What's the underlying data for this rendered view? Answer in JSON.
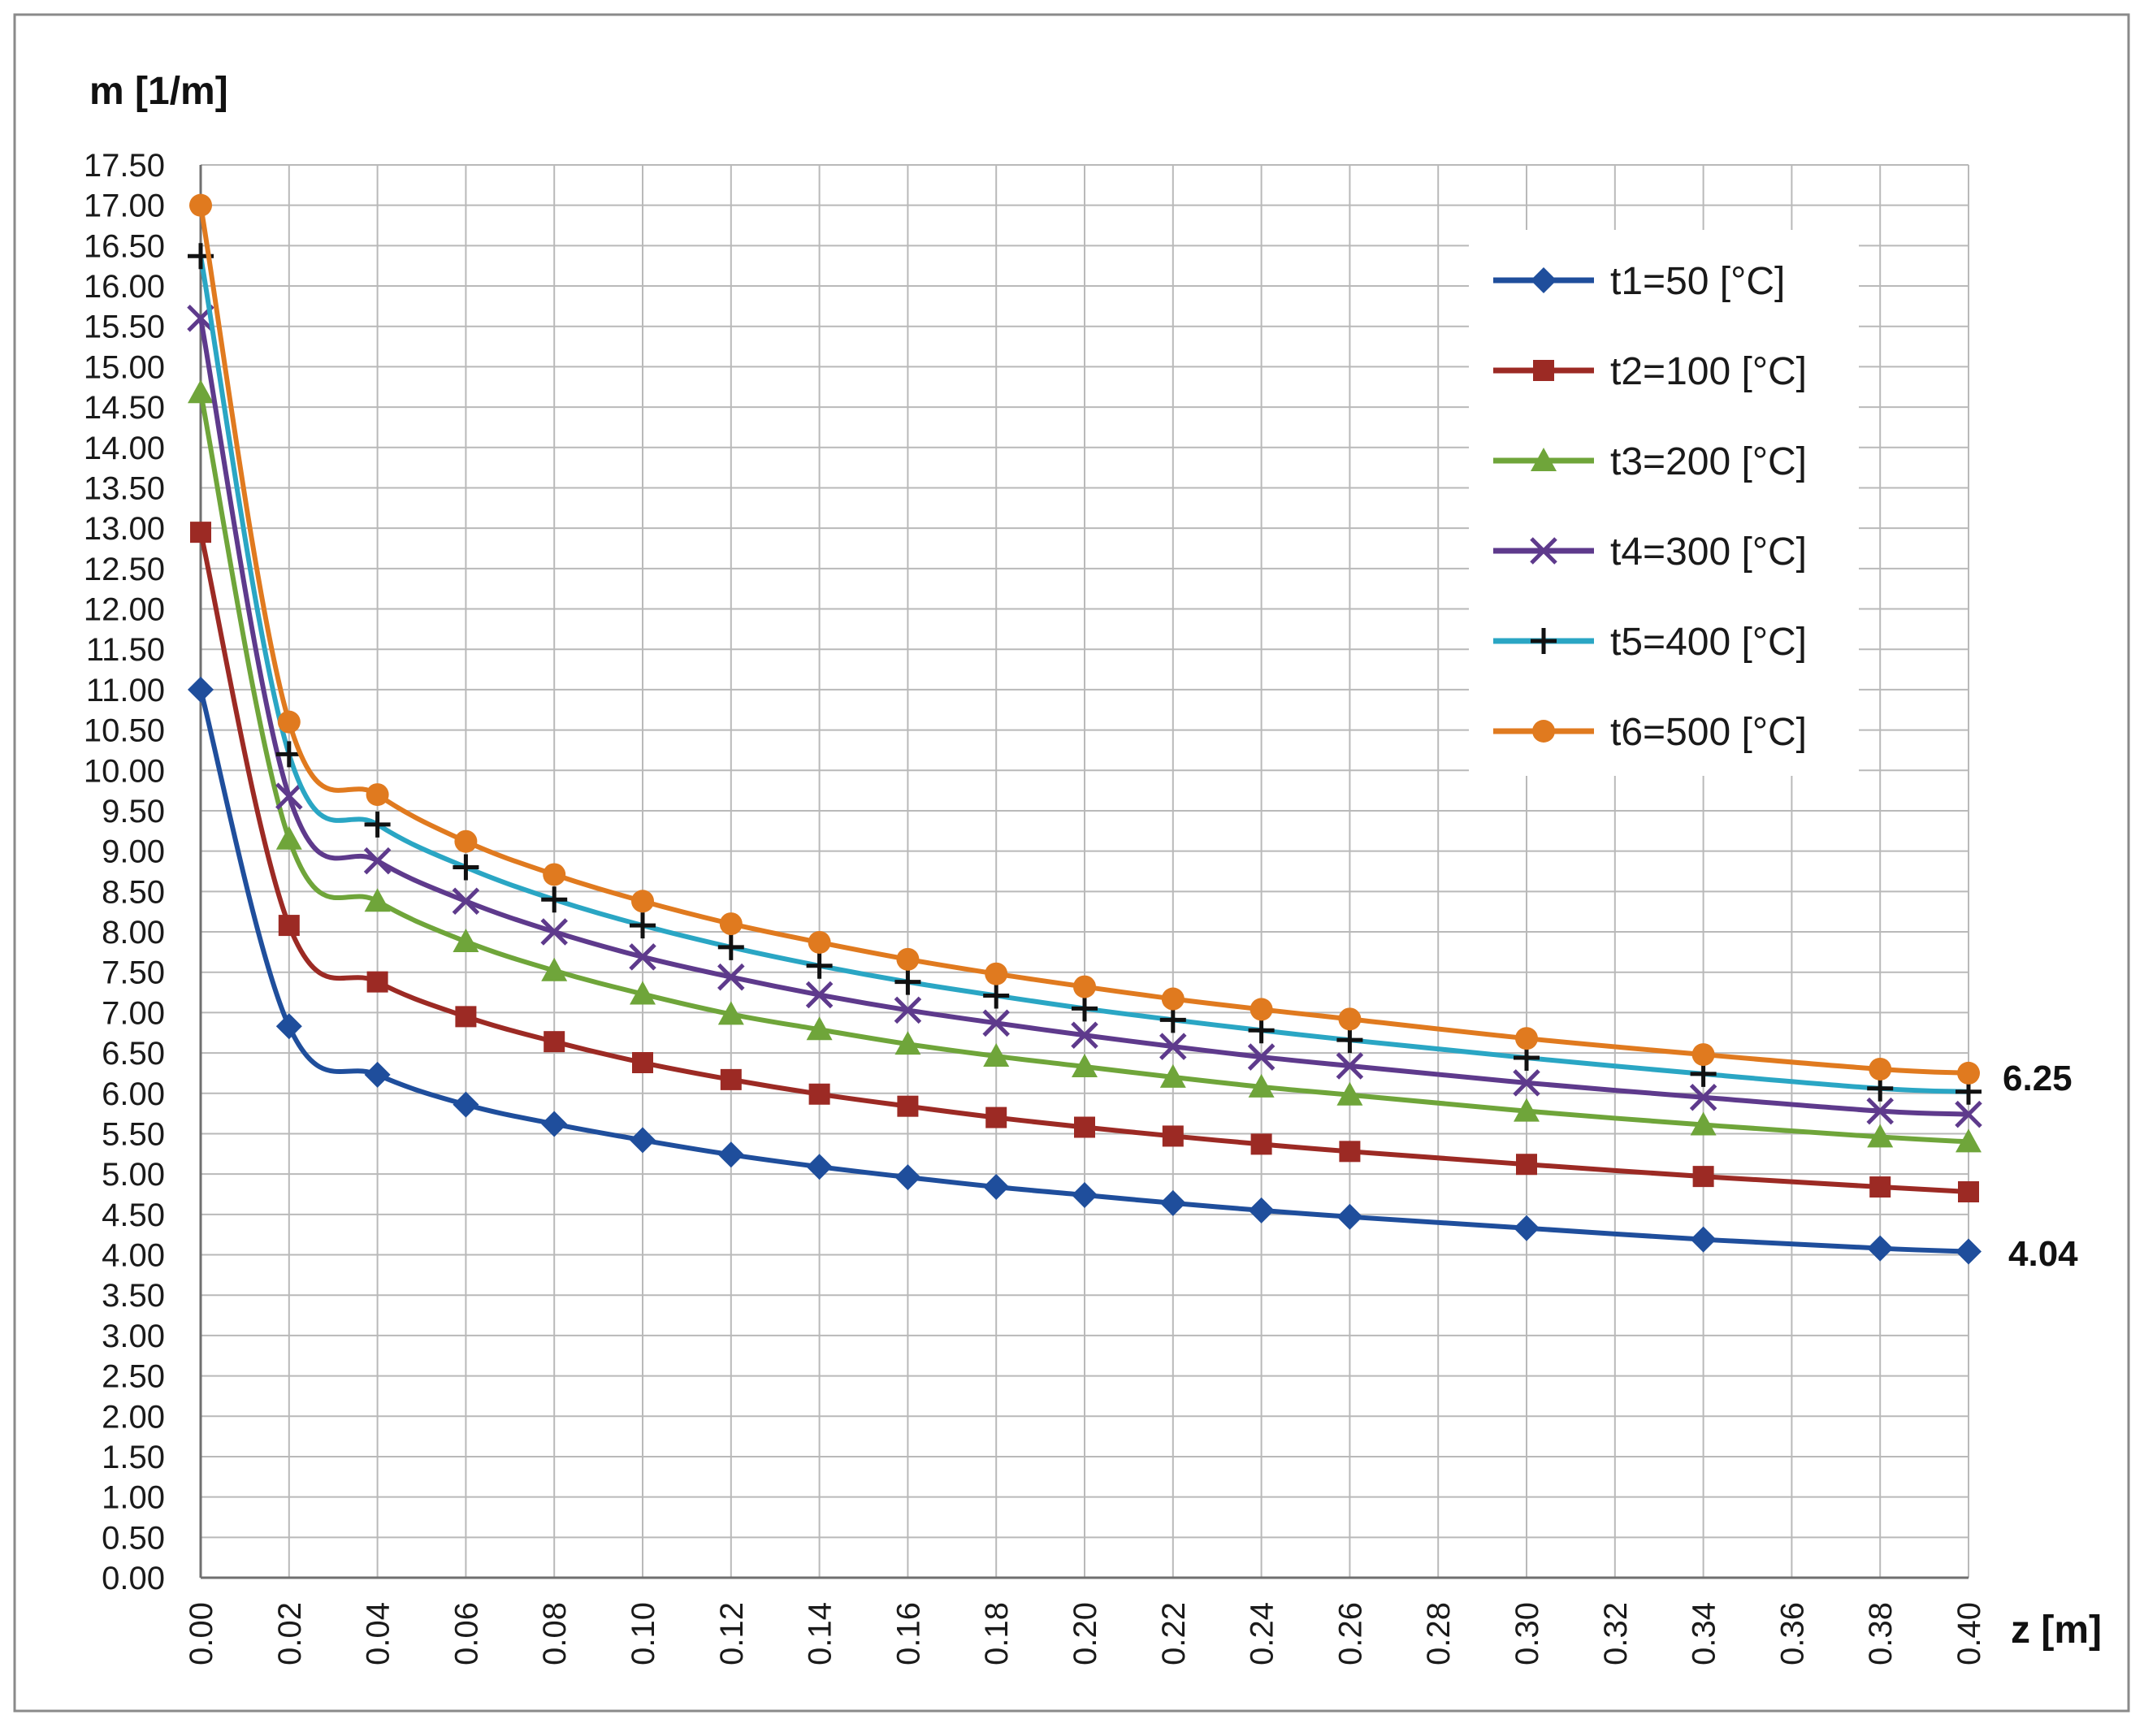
{
  "chart_data": {
    "type": "line",
    "title": "",
    "ylabel": "m [1/m]",
    "xlabel": "z [m]",
    "ylim": [
      0,
      17.5
    ],
    "ystep": 0.5,
    "xlim": [
      0,
      0.4
    ],
    "x_ticks": [
      "0.00",
      "0.02",
      "0.04",
      "0.06",
      "0.08",
      "0.10",
      "0.12",
      "0.14",
      "0.16",
      "0.18",
      "0.20",
      "0.22",
      "0.24",
      "0.26",
      "0.28",
      "0.30",
      "0.32",
      "0.34",
      "0.36",
      "0.38",
      "0.40"
    ],
    "y_ticks": [
      "0.00",
      "0.50",
      "1.00",
      "1.50",
      "2.00",
      "2.50",
      "3.00",
      "3.50",
      "4.00",
      "4.50",
      "5.00",
      "5.50",
      "6.00",
      "6.50",
      "7.00",
      "7.50",
      "8.00",
      "8.50",
      "9.00",
      "9.50",
      "10.00",
      "10.50",
      "11.00",
      "11.50",
      "12.00",
      "12.50",
      "13.00",
      "13.50",
      "14.00",
      "14.50",
      "15.00",
      "15.50",
      "16.00",
      "16.50",
      "17.00",
      "17.50"
    ],
    "grid": true,
    "legend_position": "top-right",
    "x": [
      0.0,
      0.02,
      0.04,
      0.06,
      0.08,
      0.1,
      0.12,
      0.14,
      0.16,
      0.18,
      0.2,
      0.22,
      0.24,
      0.26,
      0.3,
      0.34,
      0.38,
      0.4
    ],
    "series": [
      {
        "name": "t1=50 [°C]",
        "color": "#1f4e9c",
        "marker": "diamond",
        "values": [
          11.0,
          6.83,
          6.23,
          5.86,
          5.62,
          5.42,
          5.24,
          5.09,
          4.96,
          4.84,
          4.74,
          4.64,
          4.55,
          4.47,
          4.33,
          4.19,
          4.08,
          4.04
        ]
      },
      {
        "name": "t2=100 [°C]",
        "color": "#9c2a24",
        "marker": "square",
        "values": [
          12.95,
          8.08,
          7.38,
          6.95,
          6.64,
          6.38,
          6.17,
          5.99,
          5.84,
          5.7,
          5.58,
          5.47,
          5.37,
          5.28,
          5.12,
          4.97,
          4.84,
          4.78
        ]
      },
      {
        "name": "t3=200 [°C]",
        "color": "#6fa53a",
        "marker": "triangle",
        "values": [
          14.68,
          9.15,
          8.38,
          7.88,
          7.52,
          7.23,
          6.98,
          6.79,
          6.61,
          6.46,
          6.33,
          6.2,
          6.08,
          5.98,
          5.78,
          5.61,
          5.46,
          5.4
        ]
      },
      {
        "name": "t4=300 [°C]",
        "color": "#5e3a8c",
        "marker": "x",
        "values": [
          15.6,
          9.68,
          8.88,
          8.38,
          8.0,
          7.69,
          7.44,
          7.22,
          7.03,
          6.87,
          6.72,
          6.58,
          6.45,
          6.34,
          6.13,
          5.95,
          5.78,
          5.74
        ]
      },
      {
        "name": "t5=400 [°C]",
        "color": "#2aa6c4",
        "marker": "plus",
        "values": [
          16.37,
          10.2,
          9.33,
          8.8,
          8.4,
          8.08,
          7.81,
          7.58,
          7.38,
          7.21,
          7.05,
          6.91,
          6.78,
          6.66,
          6.44,
          6.24,
          6.06,
          6.02
        ]
      },
      {
        "name": "t6=500 [°C]",
        "color": "#e07a1f",
        "marker": "circle",
        "values": [
          17.0,
          10.6,
          9.7,
          9.12,
          8.71,
          8.38,
          8.1,
          7.87,
          7.66,
          7.48,
          7.32,
          7.17,
          7.04,
          6.92,
          6.68,
          6.48,
          6.3,
          6.25
        ]
      }
    ],
    "annotations": [
      "6.25",
      "4.04"
    ]
  }
}
